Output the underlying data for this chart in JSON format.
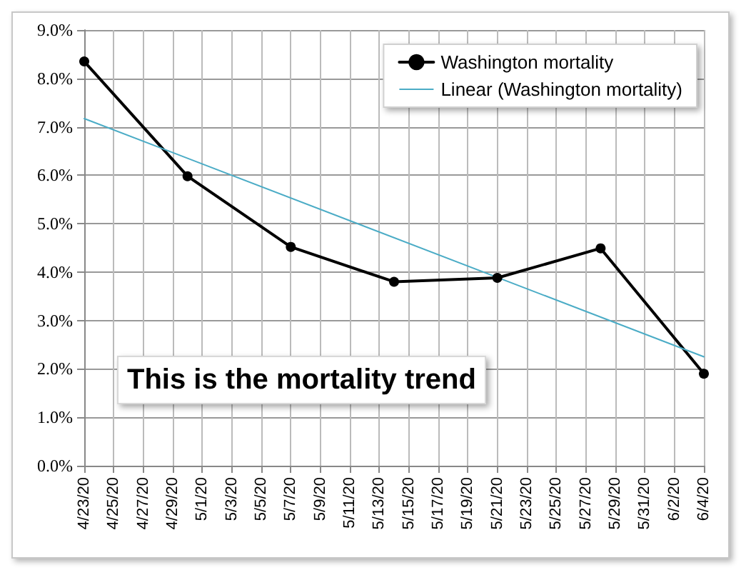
{
  "chart_data": {
    "type": "line",
    "x": [
      "--04-23",
      "--04-30",
      "--05-07",
      "--05-14",
      "--05-21",
      "--05-28",
      "--06-04"
    ],
    "series": [
      {
        "name": "Washington mortality",
        "color": "#000000",
        "values": [
          8.35,
          5.98,
          4.52,
          3.8,
          3.88,
          4.49,
          1.9
        ],
        "marker": "circle"
      },
      {
        "name": "Linear (Washington mortality)",
        "color": "#4bacc6",
        "x": [
          "--04-23",
          "--06-04"
        ],
        "values": [
          7.17,
          2.25
        ],
        "marker": "none"
      }
    ],
    "xlim": [
      "--04-23",
      "--06-04"
    ],
    "xticks": [
      {
        "value": "--04-23",
        "label": "4/23/20"
      },
      {
        "value": "--04-25",
        "label": "4/25/20"
      },
      {
        "value": "--04-27",
        "label": "4/27/20"
      },
      {
        "value": "--04-29",
        "label": "4/29/20"
      },
      {
        "value": "--05-01",
        "label": "5/1/20"
      },
      {
        "value": "--05-03",
        "label": "5/3/20"
      },
      {
        "value": "--05-05",
        "label": "5/5/20"
      },
      {
        "value": "--05-07",
        "label": "5/7/20"
      },
      {
        "value": "--05-09",
        "label": "5/9/20"
      },
      {
        "value": "--05-11",
        "label": "5/11/20"
      },
      {
        "value": "--05-13",
        "label": "5/13/20"
      },
      {
        "value": "--05-15",
        "label": "5/15/20"
      },
      {
        "value": "--05-17",
        "label": "5/17/20"
      },
      {
        "value": "--05-19",
        "label": "5/19/20"
      },
      {
        "value": "--05-21",
        "label": "5/21/20"
      },
      {
        "value": "--05-23",
        "label": "5/23/20"
      },
      {
        "value": "--05-25",
        "label": "5/25/20"
      },
      {
        "value": "--05-27",
        "label": "5/27/20"
      },
      {
        "value": "--05-29",
        "label": "5/29/20"
      },
      {
        "value": "--05-31",
        "label": "5/31/20"
      },
      {
        "value": "--06-02",
        "label": "6/2/20"
      },
      {
        "value": "--06-04",
        "label": "6/4/20"
      }
    ],
    "ylim": [
      0,
      9
    ],
    "yticks": [
      {
        "value": 0,
        "label": "0.0%"
      },
      {
        "value": 1,
        "label": "1.0%"
      },
      {
        "value": 2,
        "label": "2.0%"
      },
      {
        "value": 3,
        "label": "3.0%"
      },
      {
        "value": 4,
        "label": "4.0%"
      },
      {
        "value": 5,
        "label": "5.0%"
      },
      {
        "value": 6,
        "label": "6.0%"
      },
      {
        "value": 7,
        "label": "7.0%"
      },
      {
        "value": 8,
        "label": "8.0%"
      },
      {
        "value": 9,
        "label": "9.0%"
      }
    ],
    "annotations": [
      "This is the mortality trend"
    ],
    "grid": true,
    "legend": "top right",
    "line_style": "solid"
  }
}
